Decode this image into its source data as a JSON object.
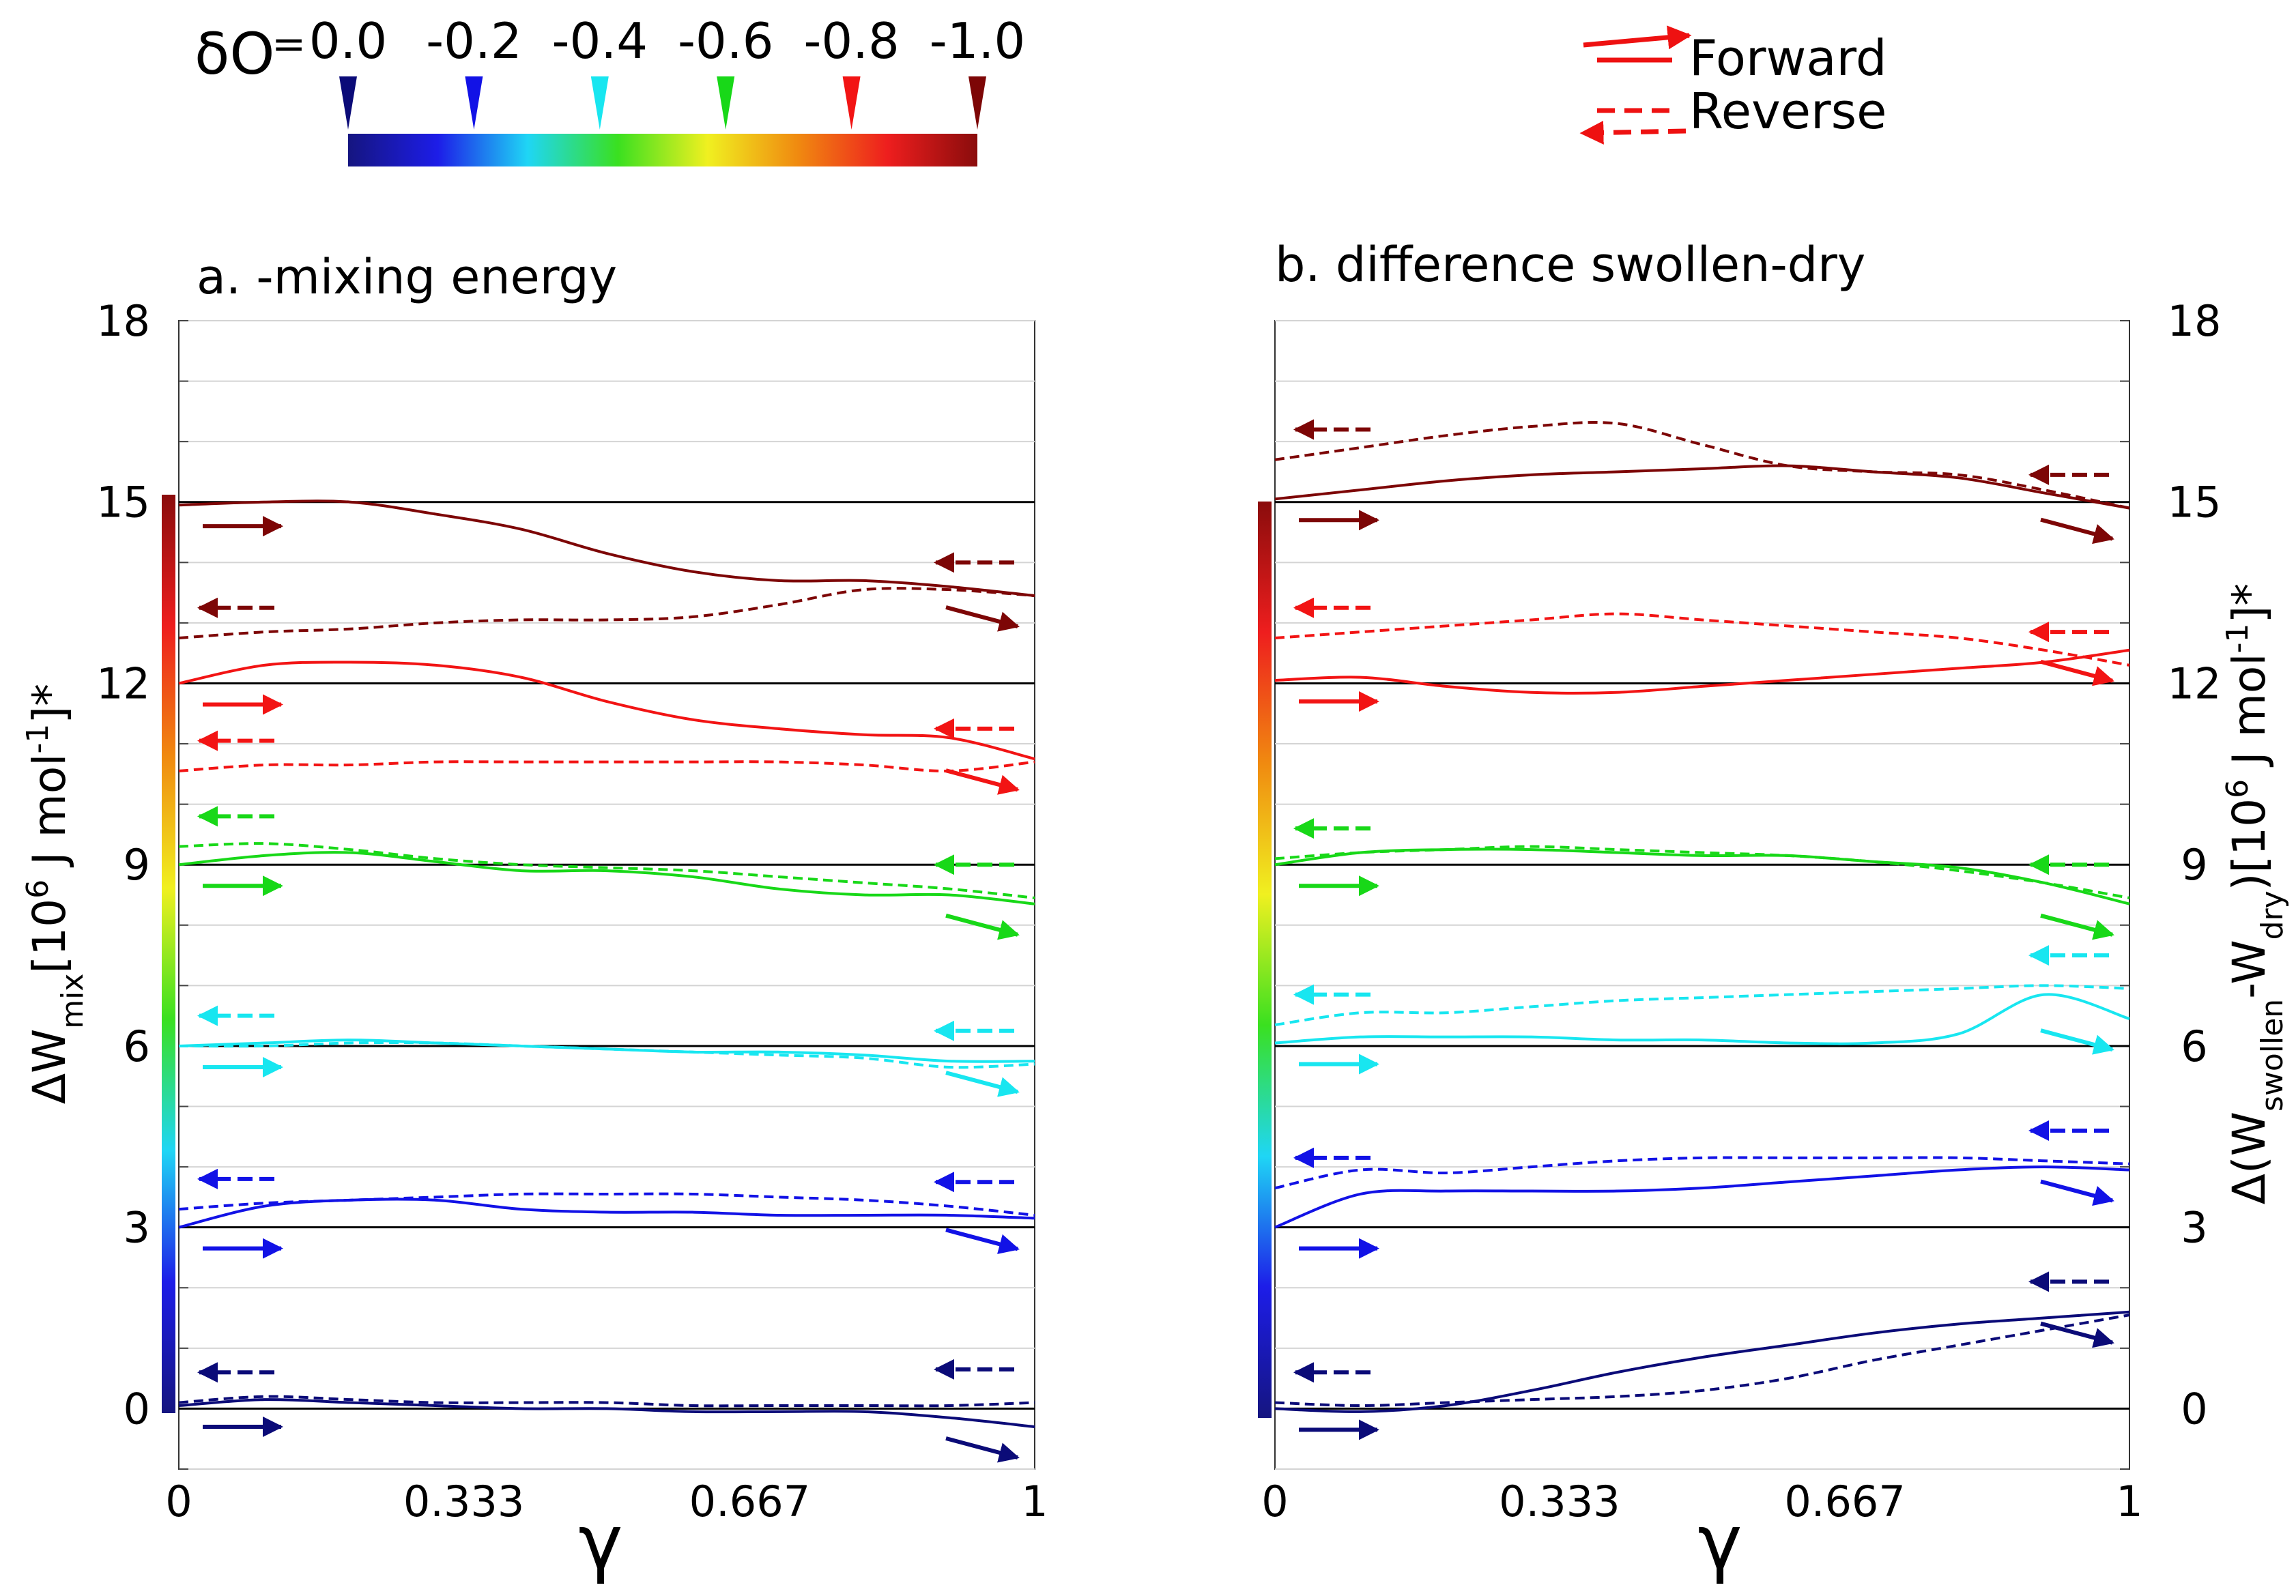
{
  "colorbar": {
    "symbol": "δO",
    "equals": "=",
    "tick_labels": [
      "0.0",
      "-0.2",
      "-0.4",
      "-0.6",
      "-0.8",
      "-1.0"
    ],
    "marker_colors": [
      "#0b0b78",
      "#1212e6",
      "#18e6f0",
      "#18d818",
      "#f21414",
      "#7d0606"
    ],
    "gradient_colors": [
      "#151580",
      "#1d1de8",
      "#1fd6f5",
      "#3ae020",
      "#f0f020",
      "#f08a10",
      "#ee1e1e",
      "#8a0c0c"
    ]
  },
  "legend": {
    "forward": "Forward",
    "reverse": "Reverse",
    "color": "#ee1111"
  },
  "chart_data": [
    {
      "type": "line",
      "title": "a. -mixing energy",
      "xlabel": "γ",
      "ylabel": "ΔW_mix[10^6 J mol^-1]*",
      "xlim": [
        0,
        1
      ],
      "ylim": [
        -1,
        18
      ],
      "xticks": [
        "0",
        "0.333",
        "0.667",
        "1"
      ],
      "yticks": [
        "0",
        "3",
        "6",
        "9",
        "12",
        "15"
      ],
      "ytick_top": "18",
      "baselines": [
        0,
        3,
        6,
        9,
        12,
        15
      ],
      "x": [
        0,
        0.1,
        0.2,
        0.3,
        0.4,
        0.5,
        0.6,
        0.7,
        0.8,
        0.9,
        1.0
      ],
      "series": [
        {
          "name": "δO=0.0 forward",
          "delta": "0.0",
          "direction": "forward",
          "color": "#0b0b78",
          "values": [
            0.05,
            0.15,
            0.1,
            0.05,
            0.0,
            0.0,
            -0.05,
            -0.05,
            -0.05,
            -0.15,
            -0.3
          ]
        },
        {
          "name": "δO=0.0 reverse",
          "delta": "0.0",
          "direction": "reverse",
          "color": "#0b0b78",
          "values": [
            0.1,
            0.2,
            0.15,
            0.1,
            0.1,
            0.1,
            0.05,
            0.05,
            0.05,
            0.05,
            0.1
          ]
        },
        {
          "name": "δO=-0.2 forward",
          "delta": "-0.2",
          "direction": "forward",
          "color": "#1212e6",
          "values": [
            3.0,
            3.35,
            3.45,
            3.45,
            3.3,
            3.25,
            3.25,
            3.2,
            3.2,
            3.2,
            3.15
          ]
        },
        {
          "name": "δO=-0.2 reverse",
          "delta": "-0.2",
          "direction": "reverse",
          "color": "#1212e6",
          "values": [
            3.3,
            3.4,
            3.45,
            3.5,
            3.55,
            3.55,
            3.55,
            3.5,
            3.45,
            3.35,
            3.2
          ]
        },
        {
          "name": "δO=-0.4 forward",
          "delta": "-0.4",
          "direction": "forward",
          "color": "#18e6f0",
          "values": [
            6.0,
            6.05,
            6.1,
            6.05,
            6.0,
            5.95,
            5.9,
            5.9,
            5.85,
            5.75,
            5.75
          ]
        },
        {
          "name": "δO=-0.4 reverse",
          "delta": "-0.4",
          "direction": "reverse",
          "color": "#18e6f0",
          "values": [
            6.0,
            6.0,
            6.05,
            6.05,
            6.0,
            5.95,
            5.9,
            5.85,
            5.8,
            5.65,
            5.7
          ]
        },
        {
          "name": "δO=-0.6 forward",
          "delta": "-0.6",
          "direction": "forward",
          "color": "#18d818",
          "values": [
            9.0,
            9.15,
            9.2,
            9.05,
            8.9,
            8.9,
            8.8,
            8.6,
            8.5,
            8.5,
            8.35
          ]
        },
        {
          "name": "δO=-0.6 reverse",
          "delta": "-0.6",
          "direction": "reverse",
          "color": "#18d818",
          "values": [
            9.3,
            9.35,
            9.25,
            9.1,
            9.0,
            8.95,
            8.9,
            8.8,
            8.7,
            8.6,
            8.45
          ]
        },
        {
          "name": "δO=-0.8 forward",
          "delta": "-0.8",
          "direction": "forward",
          "color": "#f21414",
          "values": [
            12.0,
            12.3,
            12.35,
            12.3,
            12.1,
            11.7,
            11.4,
            11.25,
            11.15,
            11.1,
            10.75
          ]
        },
        {
          "name": "δO=-0.8 reverse",
          "delta": "-0.8",
          "direction": "reverse",
          "color": "#f21414",
          "values": [
            10.55,
            10.65,
            10.65,
            10.7,
            10.7,
            10.7,
            10.7,
            10.7,
            10.65,
            10.55,
            10.7
          ]
        },
        {
          "name": "δO=-1.0 forward",
          "delta": "-1.0",
          "direction": "forward",
          "color": "#7d0606",
          "values": [
            14.95,
            15.0,
            15.0,
            14.8,
            14.55,
            14.15,
            13.85,
            13.7,
            13.7,
            13.6,
            13.45
          ]
        },
        {
          "name": "δO=-1.0 reverse",
          "delta": "-1.0",
          "direction": "reverse",
          "color": "#7d0606",
          "values": [
            12.75,
            12.85,
            12.9,
            13.0,
            13.05,
            13.05,
            13.1,
            13.3,
            13.55,
            13.55,
            13.45
          ]
        }
      ]
    },
    {
      "type": "line",
      "title": "b. difference swollen-dry",
      "xlabel": "γ",
      "ylabel": "Δ(W_swollen-W_dry)[10^6 J mol^-1]*",
      "xlim": [
        0,
        1
      ],
      "ylim": [
        -1,
        18
      ],
      "xticks": [
        "0",
        "0.333",
        "0.667",
        "1"
      ],
      "yticks": [
        "0",
        "3",
        "6",
        "9",
        "12",
        "15"
      ],
      "ytick_top": "18",
      "baselines": [
        0,
        3,
        6,
        9,
        12,
        15
      ],
      "x": [
        0,
        0.1,
        0.2,
        0.3,
        0.4,
        0.5,
        0.6,
        0.7,
        0.8,
        0.9,
        1.0
      ],
      "series": [
        {
          "name": "δO=0.0 forward",
          "delta": "0.0",
          "direction": "forward",
          "color": "#0b0b78",
          "values": [
            0.0,
            -0.05,
            0.05,
            0.3,
            0.6,
            0.85,
            1.05,
            1.25,
            1.4,
            1.5,
            1.6
          ]
        },
        {
          "name": "δO=0.0 reverse",
          "delta": "0.0",
          "direction": "reverse",
          "color": "#0b0b78",
          "values": [
            0.1,
            0.05,
            0.1,
            0.15,
            0.2,
            0.3,
            0.5,
            0.8,
            1.05,
            1.3,
            1.55
          ]
        },
        {
          "name": "δO=-0.2 forward",
          "delta": "-0.2",
          "direction": "forward",
          "color": "#1212e6",
          "values": [
            3.0,
            3.55,
            3.6,
            3.6,
            3.6,
            3.65,
            3.75,
            3.85,
            3.95,
            4.0,
            3.95
          ]
        },
        {
          "name": "δO=-0.2 reverse",
          "delta": "-0.2",
          "direction": "reverse",
          "color": "#1212e6",
          "values": [
            3.65,
            3.95,
            3.9,
            4.0,
            4.1,
            4.15,
            4.15,
            4.15,
            4.15,
            4.1,
            4.05
          ]
        },
        {
          "name": "δO=-0.4 forward",
          "delta": "-0.4",
          "direction": "forward",
          "color": "#18e6f0",
          "values": [
            6.05,
            6.15,
            6.15,
            6.15,
            6.1,
            6.1,
            6.05,
            6.05,
            6.2,
            6.85,
            6.45
          ]
        },
        {
          "name": "δO=-0.4 reverse",
          "delta": "-0.4",
          "direction": "reverse",
          "color": "#18e6f0",
          "values": [
            6.35,
            6.55,
            6.55,
            6.65,
            6.75,
            6.8,
            6.85,
            6.9,
            6.95,
            7.0,
            6.95
          ]
        },
        {
          "name": "δO=-0.6 forward",
          "delta": "-0.6",
          "direction": "forward",
          "color": "#18d818",
          "values": [
            9.0,
            9.2,
            9.25,
            9.25,
            9.2,
            9.15,
            9.15,
            9.05,
            8.95,
            8.7,
            8.35
          ]
        },
        {
          "name": "δO=-0.6 reverse",
          "delta": "-0.6",
          "direction": "reverse",
          "color": "#18d818",
          "values": [
            9.1,
            9.2,
            9.25,
            9.3,
            9.25,
            9.2,
            9.15,
            9.05,
            8.9,
            8.7,
            8.45
          ]
        },
        {
          "name": "δO=-0.8 forward",
          "delta": "-0.8",
          "direction": "forward",
          "color": "#f21414",
          "values": [
            12.05,
            12.1,
            11.95,
            11.85,
            11.85,
            11.95,
            12.05,
            12.15,
            12.25,
            12.35,
            12.55
          ]
        },
        {
          "name": "δO=-0.8 reverse",
          "delta": "-0.8",
          "direction": "reverse",
          "color": "#f21414",
          "values": [
            12.75,
            12.85,
            12.95,
            13.05,
            13.15,
            13.05,
            12.95,
            12.85,
            12.75,
            12.55,
            12.3
          ]
        },
        {
          "name": "δO=-1.0 forward",
          "delta": "-1.0",
          "direction": "forward",
          "color": "#7d0606",
          "values": [
            15.05,
            15.2,
            15.35,
            15.45,
            15.5,
            15.55,
            15.6,
            15.5,
            15.4,
            15.15,
            14.9
          ]
        },
        {
          "name": "δO=-1.0 reverse",
          "delta": "-1.0",
          "direction": "reverse",
          "color": "#7d0606",
          "values": [
            15.7,
            15.9,
            16.1,
            16.25,
            16.3,
            15.95,
            15.6,
            15.5,
            15.45,
            15.2,
            14.9
          ]
        }
      ]
    }
  ]
}
